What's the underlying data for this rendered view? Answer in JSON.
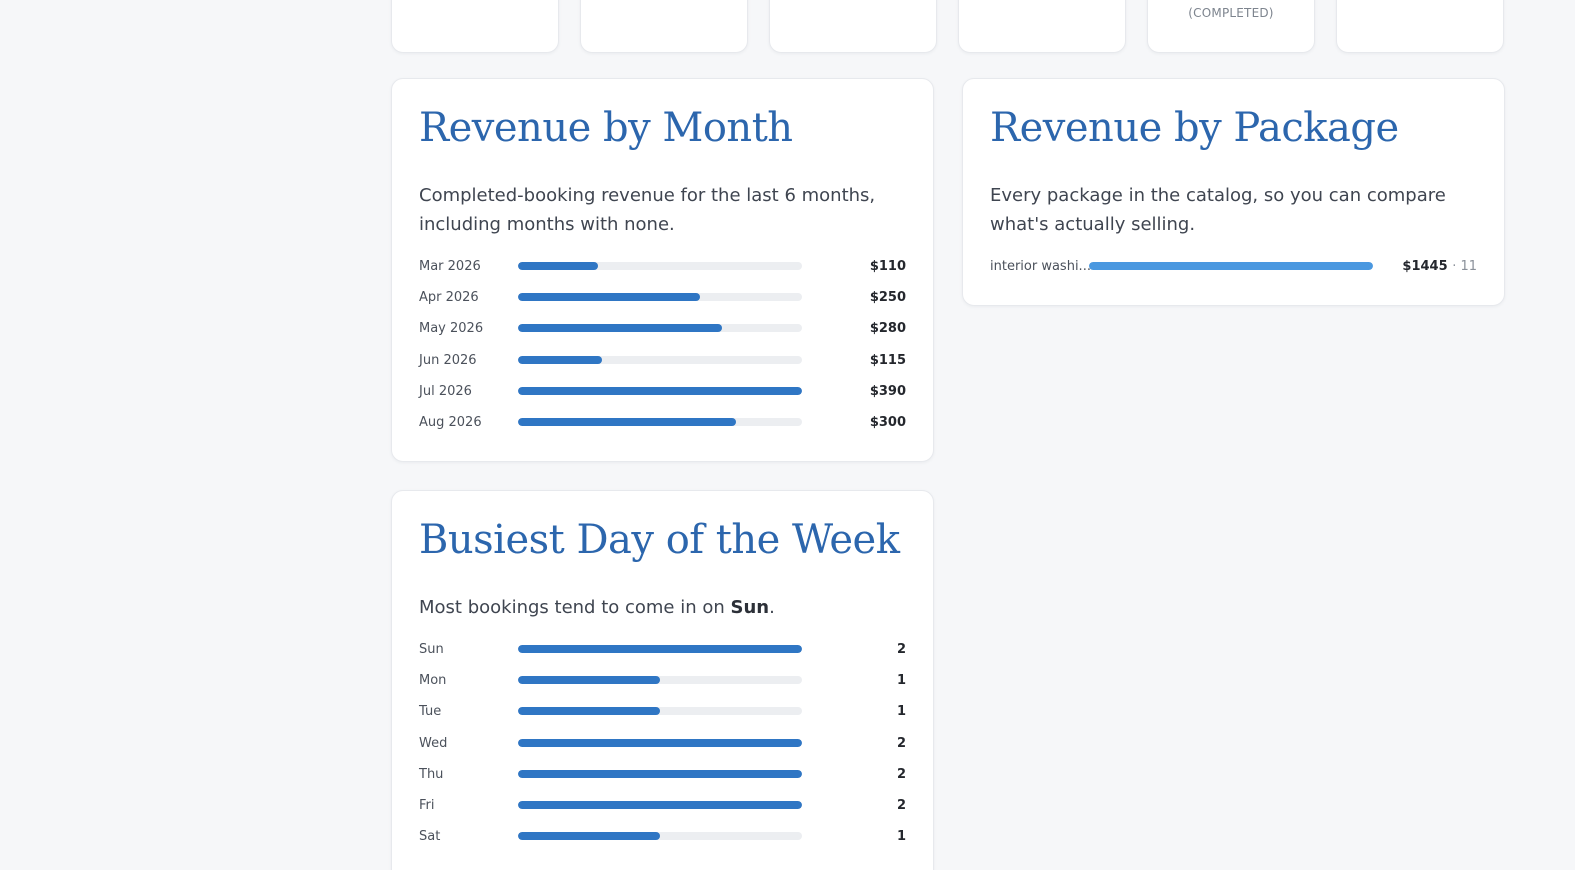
{
  "stat_cards": [
    {
      "note": ""
    },
    {
      "note": ""
    },
    {
      "note": ""
    },
    {
      "note": ""
    },
    {
      "note": "(COMPLETED)"
    },
    {
      "note": ""
    }
  ],
  "revenue_by_month": {
    "title": "Revenue by Month",
    "description": "Completed-booking revenue for the last 6 months, including months with none.",
    "rows": [
      {
        "label": "Mar 2026",
        "value": 110,
        "display": "$110"
      },
      {
        "label": "Apr 2026",
        "value": 250,
        "display": "$250"
      },
      {
        "label": "May 2026",
        "value": 280,
        "display": "$280"
      },
      {
        "label": "Jun 2026",
        "value": 115,
        "display": "$115"
      },
      {
        "label": "Jul 2026",
        "value": 390,
        "display": "$390"
      },
      {
        "label": "Aug 2026",
        "value": 300,
        "display": "$300"
      }
    ],
    "max": 390,
    "bar_color": "#2f76c4"
  },
  "revenue_by_package": {
    "title": "Revenue by Package",
    "description": "Every package in the catalog, so you can compare what's actually selling.",
    "rows": [
      {
        "label": "interior washi...",
        "value": 1445,
        "display": "$1445",
        "count": "· 11"
      }
    ],
    "max": 1445,
    "bar_color": "#4a98e0"
  },
  "busiest_day": {
    "title": "Busiest Day of the Week",
    "description_prefix": "Most bookings tend to come in on ",
    "busiest": "Sun",
    "description_suffix": ".",
    "rows": [
      {
        "label": "Sun",
        "value": 2,
        "display": "2"
      },
      {
        "label": "Mon",
        "value": 1,
        "display": "1"
      },
      {
        "label": "Tue",
        "value": 1,
        "display": "1"
      },
      {
        "label": "Wed",
        "value": 2,
        "display": "2"
      },
      {
        "label": "Thu",
        "value": 2,
        "display": "2"
      },
      {
        "label": "Fri",
        "value": 2,
        "display": "2"
      },
      {
        "label": "Sat",
        "value": 1,
        "display": "1"
      }
    ],
    "max": 2,
    "bar_color": "#2f76c4"
  }
}
